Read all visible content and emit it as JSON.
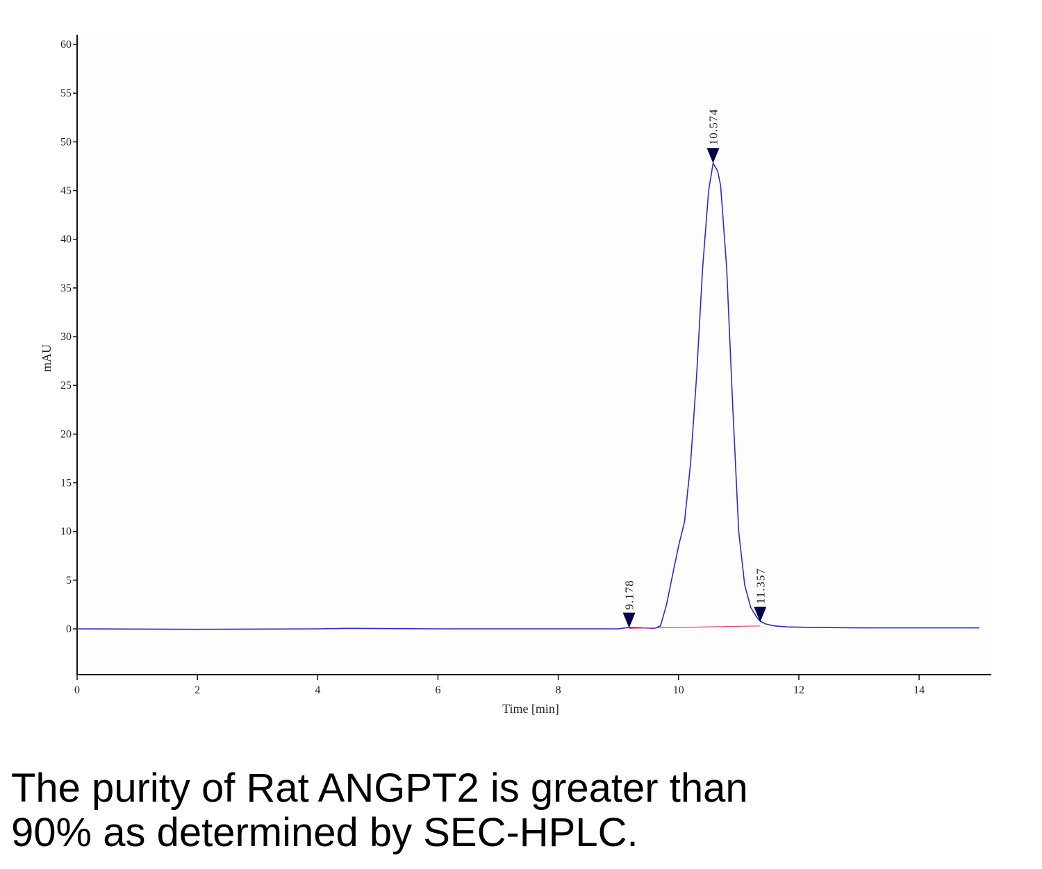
{
  "chart_data": {
    "type": "line",
    "title": "",
    "xlabel": "Time [min]",
    "ylabel": "mAU",
    "xlim": [
      0,
      15.2
    ],
    "ylim": [
      -4.7,
      61
    ],
    "x_ticks": [
      "0",
      "2",
      "4",
      "6",
      "8",
      "10",
      "12",
      "14"
    ],
    "y_ticks": [
      "0",
      "5",
      "10",
      "15",
      "20",
      "25",
      "30",
      "35",
      "40",
      "45",
      "50",
      "55",
      "60"
    ],
    "grid": false,
    "legend": "none",
    "series": [
      {
        "color": "#2a2ad0",
        "x": [
          0,
          2,
          4,
          4.5,
          6,
          8,
          9.0,
          9.178,
          9.4,
          9.6,
          9.7,
          9.8,
          9.9,
          10.0,
          10.1,
          10.2,
          10.3,
          10.4,
          10.5,
          10.574,
          10.65,
          10.7,
          10.8,
          10.9,
          11.0,
          11.1,
          11.2,
          11.3,
          11.357,
          11.45,
          11.6,
          11.8,
          12.2,
          13,
          14,
          15
        ],
        "y": [
          0,
          -0.05,
          0,
          0.05,
          0,
          0,
          0,
          0.15,
          0.1,
          0.05,
          0.3,
          2.5,
          5.5,
          8.5,
          11,
          17,
          26,
          37,
          45,
          47.8,
          47.0,
          45.5,
          37,
          23,
          10,
          4.5,
          2.2,
          1.2,
          0.8,
          0.5,
          0.3,
          0.2,
          0.15,
          0.1,
          0.1,
          0.1
        ]
      },
      {
        "color": "#e0407a",
        "x": [
          9.178,
          11.357
        ],
        "y": [
          0.05,
          0.3
        ]
      }
    ],
    "annotations": [
      {
        "x": 9.178,
        "y": 0.1,
        "label": "9.178"
      },
      {
        "x": 10.574,
        "y": 47.8,
        "label": "10.574"
      },
      {
        "x": 11.357,
        "y": 0.7,
        "label": "11.357"
      }
    ]
  },
  "caption": {
    "line1": "The purity of Rat ANGPT2 is greater than",
    "line2": "90% as determined by SEC-HPLC."
  }
}
